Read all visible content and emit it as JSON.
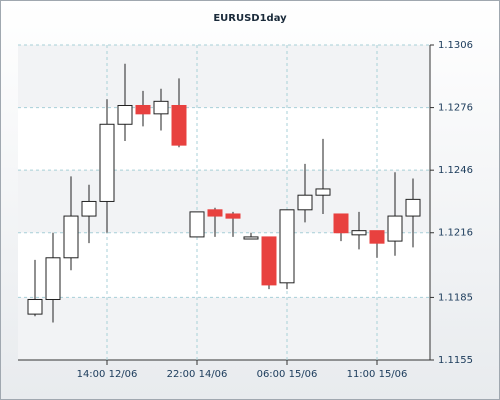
{
  "chart_data": {
    "type": "candlestick",
    "title": "EURUSD1day",
    "categories": [
      null,
      null,
      null,
      null,
      "14:00 12/06",
      null,
      null,
      null,
      null,
      "22:00 14/06",
      null,
      null,
      null,
      null,
      "06:00 15/06",
      null,
      null,
      null,
      null,
      "11:00 15/06",
      null,
      null
    ],
    "open": [
      1.1177,
      1.1184,
      1.1204,
      1.1224,
      1.1231,
      1.1268,
      1.1277,
      1.1273,
      1.1277,
      1.1214,
      1.1227,
      1.1225,
      1.1213,
      1.1214,
      1.1192,
      1.1227,
      1.1234,
      1.1225,
      1.1215,
      1.1217,
      1.1212,
      1.1224
    ],
    "high": [
      1.1203,
      1.1216,
      1.1243,
      1.1239,
      1.128,
      1.1297,
      1.1284,
      1.1285,
      1.129,
      1.1226,
      1.1228,
      1.1226,
      1.1216,
      1.1214,
      1.1227,
      1.1249,
      1.1261,
      1.1225,
      1.1226,
      1.1217,
      1.1245,
      1.1242
    ],
    "low": [
      1.1176,
      1.1173,
      1.1198,
      1.1211,
      1.1216,
      1.126,
      1.1267,
      1.1265,
      1.1257,
      1.1214,
      1.1214,
      1.1214,
      1.1213,
      1.1189,
      1.1189,
      1.1221,
      1.1225,
      1.1212,
      1.1208,
      1.1204,
      1.1205,
      1.1209
    ],
    "close": [
      1.1184,
      1.1204,
      1.1224,
      1.1231,
      1.1268,
      1.1277,
      1.1273,
      1.1279,
      1.1258,
      1.1226,
      1.1224,
      1.1223,
      1.1214,
      1.1191,
      1.1227,
      1.1234,
      1.1237,
      1.1216,
      1.1217,
      1.1211,
      1.1224,
      1.1232
    ],
    "up_color": "#ffffff",
    "down_color": "#e8413f",
    "ylim": [
      1.1155,
      1.1306
    ],
    "yticks": [
      1.1155,
      1.1185,
      1.1216,
      1.1246,
      1.1276,
      1.1306
    ],
    "grid": true
  }
}
